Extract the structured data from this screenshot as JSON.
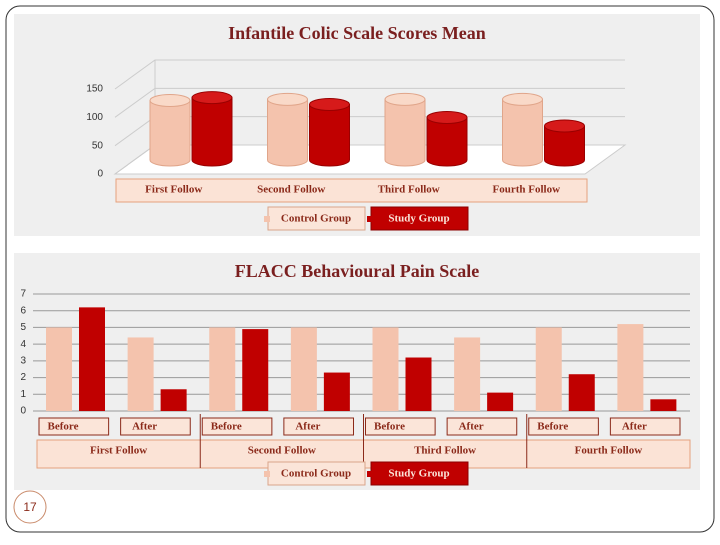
{
  "chart_data": [
    {
      "type": "bar3d",
      "title": "Infantile Colic Scale Scores Mean",
      "categories": [
        "First Follow",
        "Second Follow",
        "Third Follow",
        "Fourth Follow"
      ],
      "series": [
        {
          "name": "Control Group",
          "color": "#f4c3ad",
          "values": [
            105,
            107,
            107,
            107
          ]
        },
        {
          "name": "Study Group",
          "color": "#c00000",
          "values": [
            110,
            98,
            75,
            60
          ]
        }
      ],
      "ylim": [
        0,
        150
      ],
      "yticks": [
        0,
        50,
        100,
        150
      ],
      "grid": true
    },
    {
      "type": "bar",
      "title": "FLACC Behavioural Pain Scale",
      "categories": [
        "Before",
        "After",
        "Before",
        "After",
        "Before",
        "After",
        "Before",
        "After"
      ],
      "groups": [
        "First Follow",
        "Second Follow",
        "Third Follow",
        "Fourth Follow"
      ],
      "series": [
        {
          "name": "Control Group",
          "color": "#f4c3ad",
          "values": [
            5,
            4.4,
            5,
            5,
            5,
            4.4,
            5,
            5.2
          ]
        },
        {
          "name": "Study Group",
          "color": "#c00000",
          "values": [
            6.2,
            1.3,
            4.9,
            2.3,
            3.2,
            1.1,
            2.2,
            0.7
          ]
        }
      ],
      "ylim": [
        0,
        7
      ],
      "yticks": [
        0,
        1,
        2,
        3,
        4,
        5,
        6,
        7
      ],
      "grid": true
    }
  ],
  "slide_number": "17"
}
